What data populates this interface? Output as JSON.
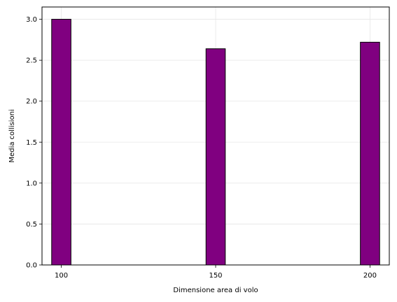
{
  "chart_data": {
    "type": "bar",
    "x": [
      100,
      150,
      200
    ],
    "values": [
      3.0,
      2.64,
      2.72
    ],
    "xlabel": "Dimensione area di volo",
    "ylabel": "Media collisioni",
    "xlim": [
      93.75,
      206.25
    ],
    "ylim": [
      0,
      3.15
    ],
    "bar_width": 6.25,
    "x_ticks": [
      "100",
      "150",
      "200"
    ],
    "y_ticks": [
      "0.0",
      "0.5",
      "1.0",
      "1.5",
      "2.0",
      "2.5",
      "3.0"
    ],
    "grid": true,
    "bar_color": "#800080",
    "edge_color": "#000000"
  }
}
